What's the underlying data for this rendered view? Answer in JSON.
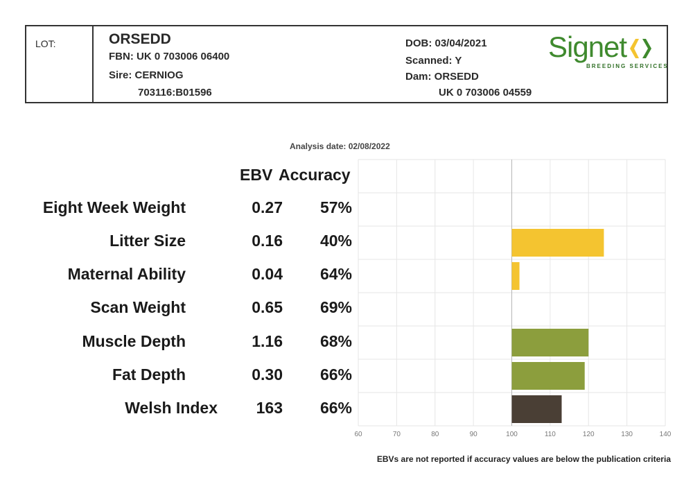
{
  "header": {
    "lot_label": "LOT:",
    "animal_name": "ORSEDD",
    "fbn": "FBN: UK 0 703006 06400",
    "sire": "Sire: CERNIOG",
    "sire_id": "703116:B01596",
    "dob": "DOB: 03/04/2021",
    "scanned": "Scanned: Y",
    "dam": "Dam: ORSEDD",
    "dam_id": "UK 0 703006 04559",
    "logo_text": "Signet",
    "logo_sub": "BREEDING SERVICES",
    "logo_color": "#3f8a2e"
  },
  "analysis_date": "Analysis date: 02/08/2022",
  "table": {
    "ebv_header": "EBV",
    "accuracy_header": "Accuracy",
    "rows": [
      {
        "trait": "Eight Week Weight",
        "ebv": "0.27",
        "accuracy": "57%"
      },
      {
        "trait": "Litter Size",
        "ebv": "0.16",
        "accuracy": "40%"
      },
      {
        "trait": "Maternal Ability",
        "ebv": "0.04",
        "accuracy": "64%"
      },
      {
        "trait": "Scan Weight",
        "ebv": "0.65",
        "accuracy": "69%"
      },
      {
        "trait": "Muscle Depth",
        "ebv": "1.16",
        "accuracy": "68%"
      },
      {
        "trait": "Fat Depth",
        "ebv": "0.30",
        "accuracy": "66%"
      },
      {
        "trait": "Welsh Index",
        "ebv": "163",
        "accuracy": "66%"
      }
    ]
  },
  "chart_data": {
    "type": "bar",
    "orientation": "horizontal",
    "categories": [
      "Eight Week Weight",
      "Litter Size",
      "Maternal Ability",
      "Scan Weight",
      "Muscle Depth",
      "Fat Depth",
      "Welsh Index"
    ],
    "values": [
      null,
      124,
      102,
      null,
      120,
      119,
      113
    ],
    "baseline": 100,
    "xlim": [
      60,
      140
    ],
    "xticks": [
      60,
      70,
      80,
      90,
      100,
      110,
      120,
      130,
      140
    ],
    "grid": true,
    "colors": [
      "#f4c430",
      "#f4c430",
      "#f4c430",
      "#8c9e3d",
      "#8c9e3d",
      "#8c9e3d",
      "#4a3f35"
    ]
  },
  "footnote": "EBVs are not reported if accuracy values are below the publication criteria"
}
